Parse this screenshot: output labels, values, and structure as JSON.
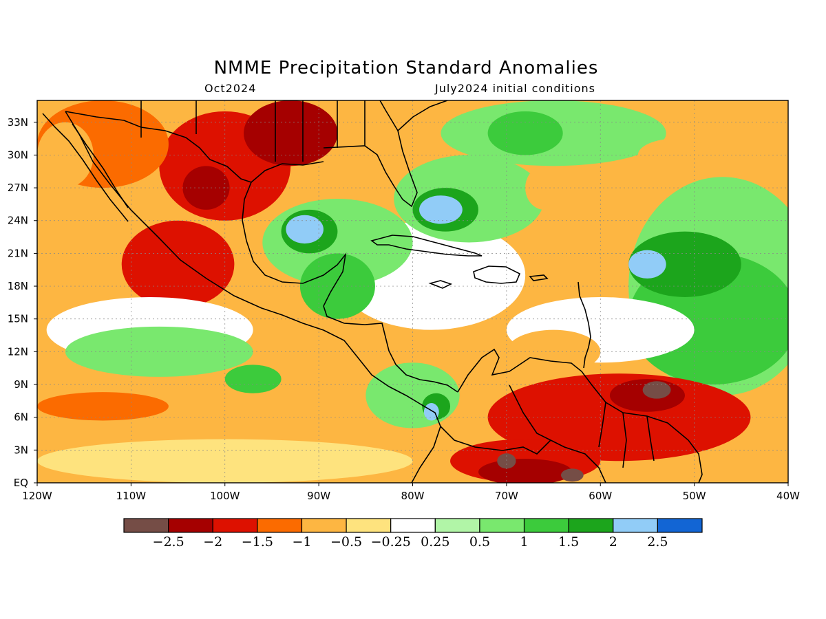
{
  "title": "NMME Precipitation Standard Anomalies",
  "subtitle_left": "Oct2024",
  "subtitle_right": "July2024 initial conditions",
  "map": {
    "lat_range": [
      0,
      35
    ],
    "lon_range": [
      -120,
      -40
    ],
    "lat_ticks": [
      {
        "value": 33,
        "label": "33N"
      },
      {
        "value": 30,
        "label": "30N"
      },
      {
        "value": 27,
        "label": "27N"
      },
      {
        "value": 24,
        "label": "24N"
      },
      {
        "value": 21,
        "label": "21N"
      },
      {
        "value": 18,
        "label": "18N"
      },
      {
        "value": 15,
        "label": "15N"
      },
      {
        "value": 12,
        "label": "12N"
      },
      {
        "value": 9,
        "label": "9N"
      },
      {
        "value": 6,
        "label": "6N"
      },
      {
        "value": 3,
        "label": "3N"
      },
      {
        "value": 0,
        "label": "EQ"
      }
    ],
    "lon_ticks": [
      {
        "value": -120,
        "label": "120W"
      },
      {
        "value": -110,
        "label": "110W"
      },
      {
        "value": -100,
        "label": "100W"
      },
      {
        "value": -90,
        "label": "90W"
      },
      {
        "value": -80,
        "label": "80W"
      },
      {
        "value": -70,
        "label": "70W"
      },
      {
        "value": -60,
        "label": "60W"
      },
      {
        "value": -50,
        "label": "50W"
      },
      {
        "value": -40,
        "label": "40W"
      }
    ],
    "background_color": "#fdb642",
    "anomaly_regions": [
      {
        "level": -1.5,
        "center": [
          -100,
          29
        ],
        "radius": [
          7,
          5
        ]
      },
      {
        "level": -2,
        "center": [
          -93,
          32
        ],
        "radius": [
          5,
          3
        ]
      },
      {
        "level": -2,
        "center": [
          -102,
          27
        ],
        "radius": [
          2.5,
          2
        ]
      },
      {
        "level": -1.5,
        "center": [
          -105,
          20
        ],
        "radius": [
          6,
          4
        ]
      },
      {
        "level": -1,
        "center": [
          -113,
          31
        ],
        "radius": [
          7,
          4
        ]
      },
      {
        "level": -0.5,
        "center": [
          -117,
          30
        ],
        "radius": [
          3,
          3
        ]
      },
      {
        "level": 0,
        "center": [
          -108,
          14
        ],
        "radius": [
          11,
          3
        ]
      },
      {
        "level": 1,
        "center": [
          -107,
          12
        ],
        "radius": [
          10,
          2.3
        ]
      },
      {
        "level": 1.5,
        "center": [
          -97,
          9.5
        ],
        "radius": [
          3,
          1.3
        ]
      },
      {
        "level": -1,
        "center": [
          -113,
          7
        ],
        "radius": [
          7,
          1.3
        ]
      },
      {
        "level": -0.25,
        "center": [
          -100,
          2
        ],
        "radius": [
          20,
          2
        ]
      },
      {
        "level": 0,
        "center": [
          -78,
          19
        ],
        "radius": [
          10,
          5
        ]
      },
      {
        "level": 1,
        "center": [
          -88,
          22
        ],
        "radius": [
          8,
          4
        ]
      },
      {
        "level": 1.5,
        "center": [
          -88,
          18
        ],
        "radius": [
          4,
          3
        ]
      },
      {
        "level": 2,
        "center": [
          -91,
          23
        ],
        "radius": [
          3,
          2
        ]
      },
      {
        "level": 2.5,
        "center": [
          -91.5,
          23.2
        ],
        "radius": [
          2,
          1.3
        ]
      },
      {
        "level": 1,
        "center": [
          -74,
          26
        ],
        "radius": [
          8,
          4
        ]
      },
      {
        "level": 2,
        "center": [
          -76.5,
          25
        ],
        "radius": [
          3.5,
          2
        ]
      },
      {
        "level": 2.5,
        "center": [
          -77,
          25
        ],
        "radius": [
          2.3,
          1.3
        ]
      },
      {
        "level": 1,
        "center": [
          -80,
          8
        ],
        "radius": [
          5,
          3
        ]
      },
      {
        "level": 2,
        "center": [
          -77.5,
          7
        ],
        "radius": [
          1.5,
          1.2
        ]
      },
      {
        "level": 2.5,
        "center": [
          -78,
          6.5
        ],
        "radius": [
          0.8,
          0.8
        ]
      },
      {
        "level": 1,
        "center": [
          -65,
          32
        ],
        "radius": [
          12,
          3
        ]
      },
      {
        "level": 1.5,
        "center": [
          -68,
          32
        ],
        "radius": [
          4,
          2
        ]
      },
      {
        "level": 1,
        "center": [
          -47,
          18
        ],
        "radius": [
          10,
          10
        ]
      },
      {
        "level": 1.5,
        "center": [
          -48,
          15
        ],
        "radius": [
          9,
          6
        ]
      },
      {
        "level": 2,
        "center": [
          -51,
          20
        ],
        "radius": [
          6,
          3
        ]
      },
      {
        "level": 2.5,
        "center": [
          -55,
          20
        ],
        "radius": [
          2,
          1.3
        ]
      },
      {
        "level": -0.5,
        "center": [
          -66,
          27
        ],
        "radius": [
          2,
          2
        ]
      },
      {
        "level": -0.5,
        "center": [
          -52,
          30
        ],
        "radius": [
          4,
          1.5
        ]
      },
      {
        "level": 0,
        "center": [
          -60,
          14
        ],
        "radius": [
          10,
          3
        ]
      },
      {
        "level": -0.5,
        "center": [
          -65,
          12
        ],
        "radius": [
          5,
          2
        ]
      },
      {
        "level": -1.5,
        "center": [
          -58,
          6
        ],
        "radius": [
          14,
          4
        ]
      },
      {
        "level": -2,
        "center": [
          -55,
          8
        ],
        "radius": [
          4,
          1.5
        ]
      },
      {
        "level": -2.5,
        "center": [
          -54,
          8.5
        ],
        "radius": [
          1.5,
          0.8
        ]
      },
      {
        "level": -1.5,
        "center": [
          -68,
          2
        ],
        "radius": [
          8,
          2
        ]
      },
      {
        "level": -2,
        "center": [
          -68,
          1
        ],
        "radius": [
          5,
          1.2
        ]
      },
      {
        "level": -3,
        "center": [
          -70,
          2
        ],
        "radius": [
          1,
          0.7
        ]
      },
      {
        "level": -3,
        "center": [
          -63,
          0.7
        ],
        "radius": [
          1.2,
          0.6
        ]
      }
    ]
  },
  "colorbar": {
    "colors": [
      "#754d46",
      "#a50000",
      "#dd1100",
      "#fb6b00",
      "#fdb642",
      "#fee37e",
      "#ffffff",
      "#b1f5a7",
      "#79e86e",
      "#3ccb3c",
      "#1ca51c",
      "#91ccf7",
      "#1265d4"
    ],
    "labels": [
      "−2.5",
      "−2",
      "−1.5",
      "−1",
      "−0.5",
      "−0.25",
      "0.25",
      "0.5",
      "1",
      "1.5",
      "2",
      "2.5"
    ]
  },
  "region_labels": []
}
